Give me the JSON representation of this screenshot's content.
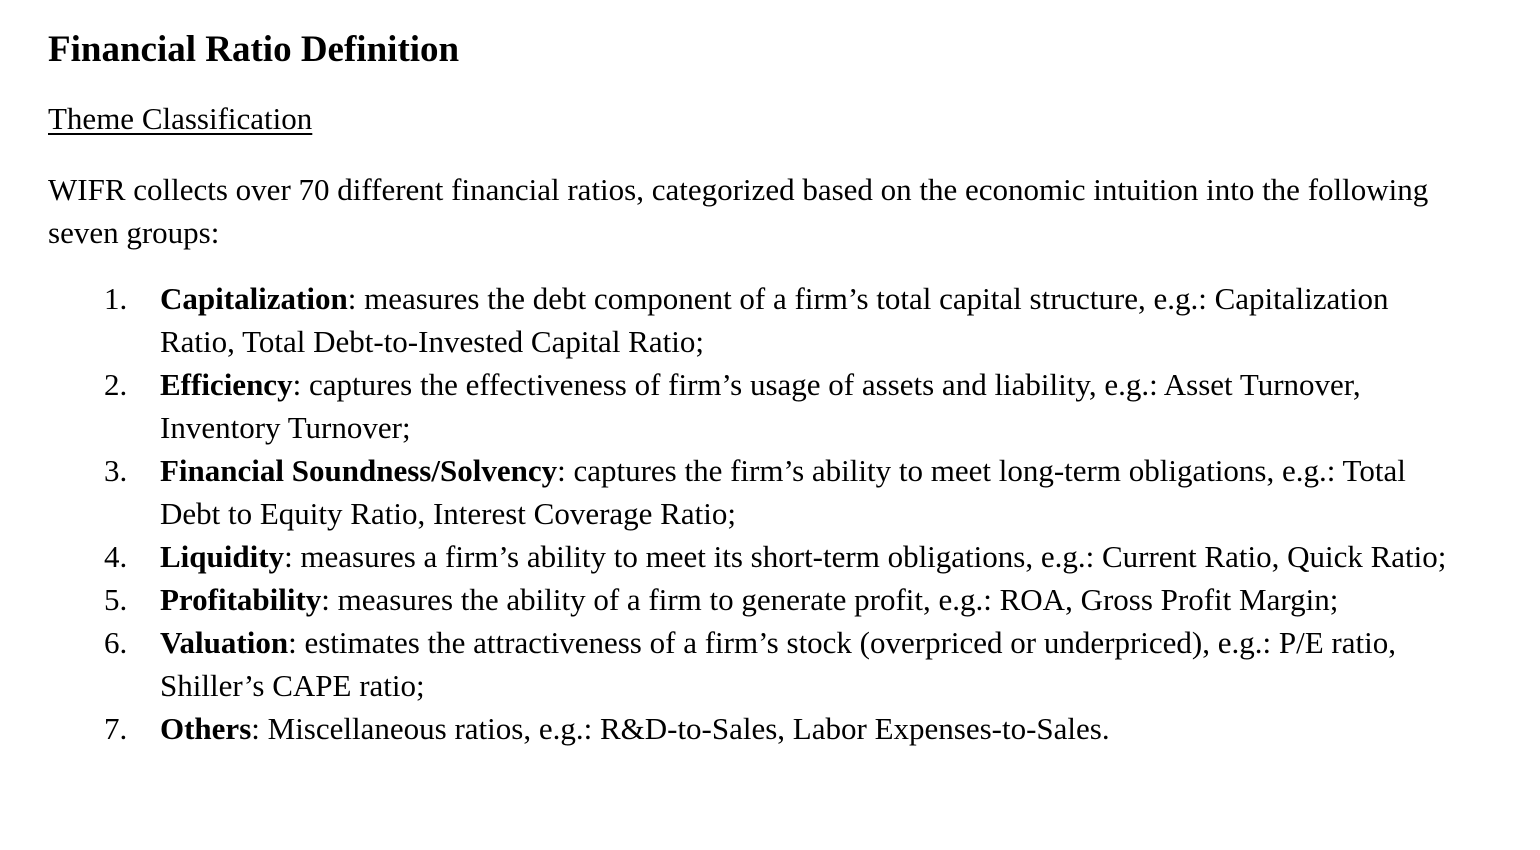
{
  "document": {
    "title": "Financial Ratio Definition",
    "section_heading": "Theme Classification",
    "intro": "WIFR collects over 70 different financial ratios, categorized based on the economic intuition into the following seven groups:",
    "groups": [
      {
        "number": "1.",
        "term": "Capitalization",
        "description": ": measures the debt component of a firm’s total capital structure, e.g.: Capitalization Ratio, Total Debt-to-Invested Capital Ratio;"
      },
      {
        "number": "2.",
        "term": "Efficiency",
        "description": ": captures the effectiveness of firm’s usage of assets and liability, e.g.: Asset Turnover, Inventory Turnover;"
      },
      {
        "number": "3.",
        "term": "Financial Soundness/Solvency",
        "description": ": captures the firm’s ability to meet long-term obligations, e.g.: Total Debt to Equity Ratio, Interest Coverage Ratio;"
      },
      {
        "number": "4.",
        "term": "Liquidity",
        "description": ": measures a firm’s ability to meet its short-term obligations, e.g.: Current Ratio, Quick Ratio;"
      },
      {
        "number": "5.",
        "term": "Profitability",
        "description": ": measures the ability of a firm to generate profit, e.g.: ROA, Gross Profit Margin;"
      },
      {
        "number": "6.",
        "term": "Valuation",
        "description": ": estimates the attractiveness of a firm’s stock (overpriced or underpriced), e.g.: P/E ratio, Shiller’s CAPE ratio;"
      },
      {
        "number": "7.",
        "term": "Others",
        "description": ": Miscellaneous ratios, e.g.: R&D-to-Sales, Labor Expenses-to-Sales."
      }
    ]
  }
}
